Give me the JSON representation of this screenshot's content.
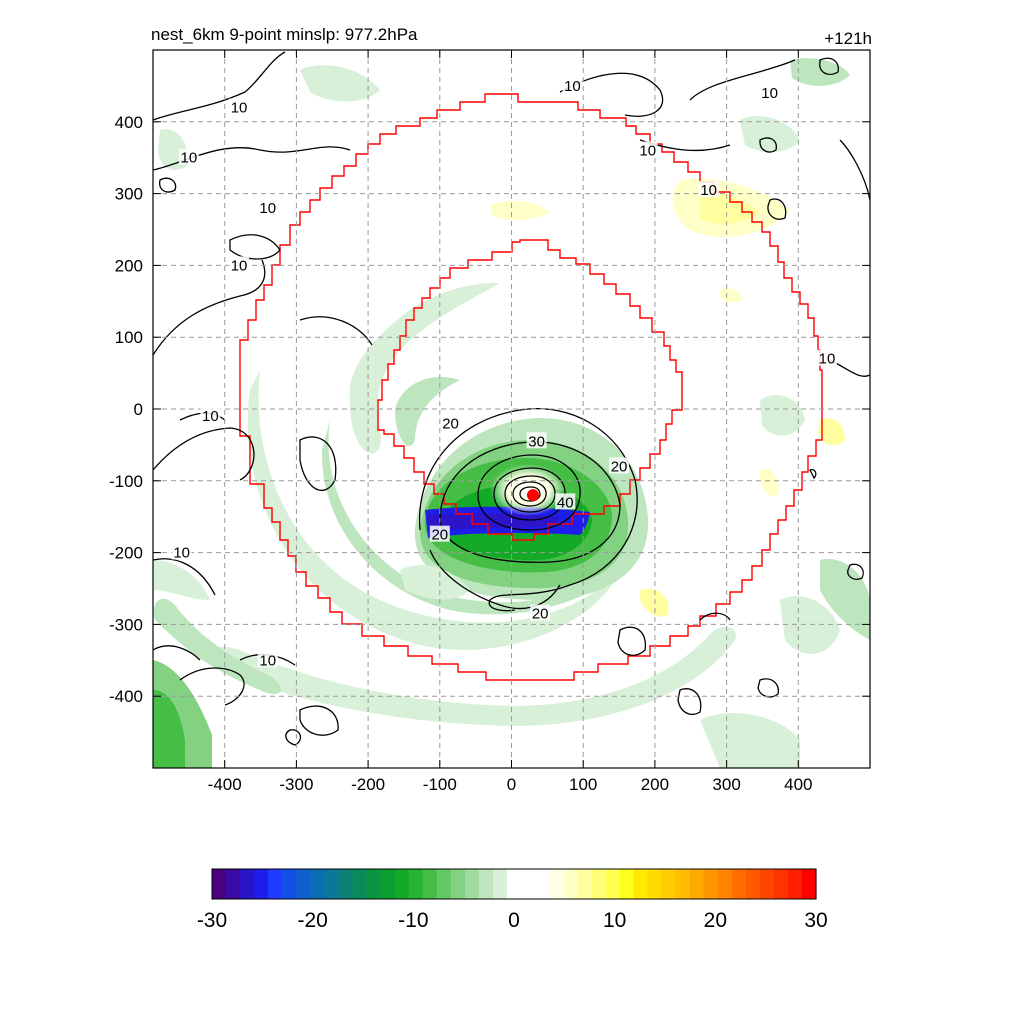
{
  "chart_data": {
    "type": "heatmap",
    "title_left": "nest_6km  9-point minslp: 977.2hPa",
    "title_right": "+121h",
    "xlabel": "",
    "ylabel": "",
    "xlim": [
      -500,
      500
    ],
    "ylim": [
      -500,
      500
    ],
    "x_ticks": [
      -400,
      -300,
      -200,
      -100,
      0,
      100,
      200,
      300,
      400
    ],
    "y_ticks": [
      400,
      300,
      200,
      100,
      0,
      -100,
      -200,
      -300,
      -400
    ],
    "x_tick_labels": [
      "-400",
      "-300",
      "-200",
      "-100",
      "0",
      "100",
      "200",
      "300",
      "400"
    ],
    "y_tick_labels": [
      "400",
      "300",
      "200",
      "100",
      "0",
      "-100",
      "-200",
      "-300",
      "-400"
    ],
    "grid": true,
    "storm_center": {
      "x": 30,
      "y": -120
    },
    "contour_labels": [
      {
        "text": "10",
        "x": -380,
        "y": 420
      },
      {
        "text": "10",
        "x": -450,
        "y": 350
      },
      {
        "text": "10",
        "x": -340,
        "y": 280
      },
      {
        "text": "10",
        "x": -380,
        "y": 200
      },
      {
        "text": "10",
        "x": -420,
        "y": -10
      },
      {
        "text": "10",
        "x": -460,
        "y": -200
      },
      {
        "text": "10",
        "x": -340,
        "y": -350
      },
      {
        "text": "10",
        "x": 85,
        "y": 450
      },
      {
        "text": "10",
        "x": 360,
        "y": 440
      },
      {
        "text": "10",
        "x": 190,
        "y": 360
      },
      {
        "text": "10",
        "x": 275,
        "y": 305
      },
      {
        "text": "10",
        "x": 440,
        "y": 70
      },
      {
        "text": "20",
        "x": -85,
        "y": -20
      },
      {
        "text": "20",
        "x": -100,
        "y": -175
      },
      {
        "text": "20",
        "x": 40,
        "y": -285
      },
      {
        "text": "20",
        "x": 150,
        "y": -80
      },
      {
        "text": "30",
        "x": 35,
        "y": -45
      },
      {
        "text": "40",
        "x": 75,
        "y": -130
      }
    ],
    "colorbar": {
      "range": [
        -30,
        30
      ],
      "tick_labels": [
        "-30",
        "-20",
        "-10",
        "0",
        "10",
        "20",
        "30"
      ],
      "colors": [
        "#4b0082",
        "#3a0aa5",
        "#2a14c8",
        "#1e1eea",
        "#1e3cff",
        "#1450e6",
        "#0f5fcd",
        "#0a6eb4",
        "#0a7896",
        "#0a8278",
        "#0a8c5a",
        "#0a9641",
        "#0aa032",
        "#14aa28",
        "#28b432",
        "#46be46",
        "#64c864",
        "#82d282",
        "#a0dca0",
        "#bee6be",
        "#d7f0d7",
        "#ffffff",
        "#ffffff",
        "#ffffff",
        "#ffffe6",
        "#ffffc8",
        "#ffffa0",
        "#ffff78",
        "#ffff50",
        "#ffff1e",
        "#ffeb00",
        "#ffdc00",
        "#ffcd00",
        "#ffbe00",
        "#ffaa00",
        "#ff9600",
        "#ff8200",
        "#ff6e00",
        "#ff5a00",
        "#ff4600",
        "#ff3200",
        "#ff1e00",
        "#ff0000"
      ]
    }
  }
}
